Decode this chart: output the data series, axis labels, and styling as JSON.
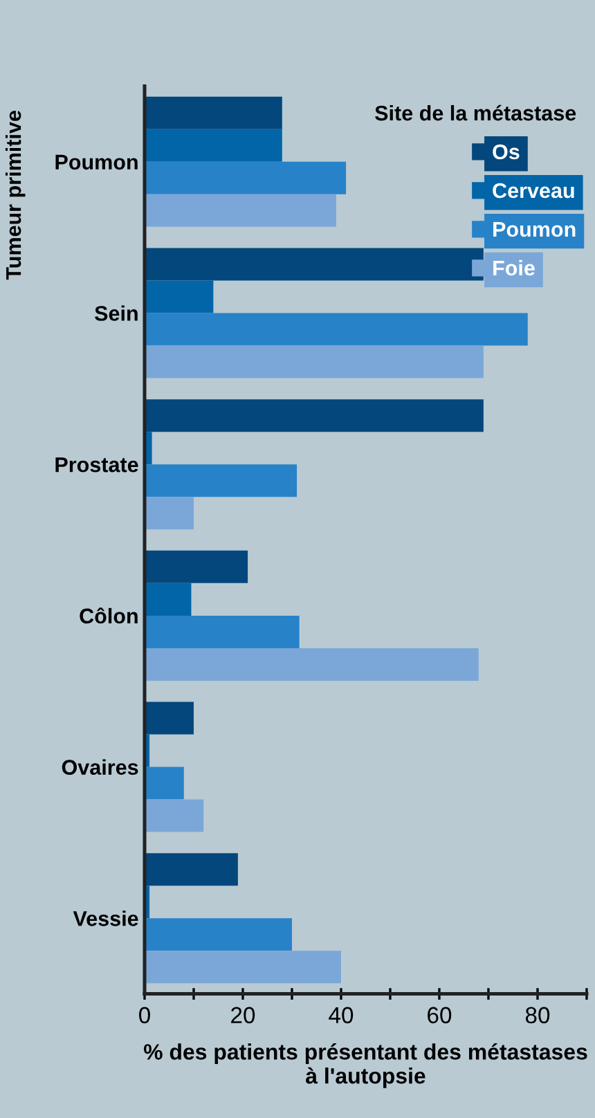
{
  "chart_data": {
    "type": "bar",
    "orientation": "horizontal",
    "categories": [
      "Poumon",
      "Sein",
      "Prostate",
      "Côlon",
      "Ovaires",
      "Vessie"
    ],
    "series": [
      {
        "name": "Os",
        "color": "#03477c",
        "values": [
          28,
          69,
          69,
          21,
          10,
          19
        ]
      },
      {
        "name": "Cerveau",
        "color": "#0265a8",
        "values": [
          28,
          14,
          1.5,
          9.5,
          1,
          1
        ]
      },
      {
        "name": "Poumon",
        "color": "#2882c8",
        "values": [
          41,
          78,
          31,
          31.5,
          8,
          30
        ]
      },
      {
        "name": "Foie",
        "color": "#7ba7d8",
        "values": [
          39,
          69,
          10,
          68,
          12,
          40
        ]
      }
    ],
    "xlabel": "% des patients présentant des métastases à l'autopsie",
    "ylabel": "Tumeur primitive",
    "legend_title": "Site de la métastase",
    "legend": "top right",
    "xlim": [
      0,
      90
    ],
    "xticks": [
      0,
      {
        "value": 10,
        "label": null
      },
      20,
      {
        "value": 30,
        "label": null
      },
      40,
      {
        "value": 50,
        "label": null
      },
      60,
      {
        "value": 70,
        "label": null
      },
      80,
      {
        "value": 90,
        "label": null
      }
    ],
    "grid": false
  }
}
